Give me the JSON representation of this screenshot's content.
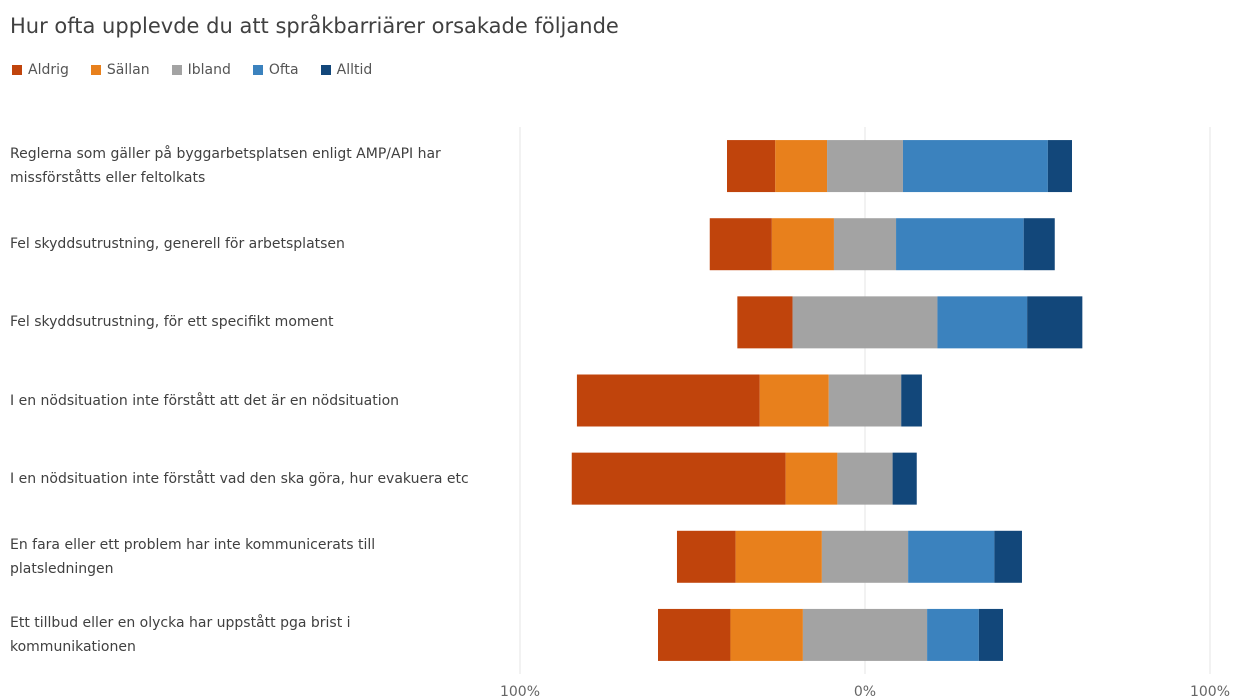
{
  "chart_data": {
    "type": "diverging-bar",
    "title": "Hur ofta upplevde du att språkbarriärer orsakade följande",
    "categories": [
      "Reglerna som gäller på byggarbetsplatsen enligt AMP/API har missförståtts eller feltolkats",
      "Fel skyddsutrustning, generell för arbetsplatsen",
      "Fel skyddsutrustning, för ett specifikt moment",
      "I en nödsituation inte förstått att det är en nödsituation",
      "I en nödsituation inte förstått vad den ska göra, hur evakuera etc",
      "En fara eller ett problem har inte kommunicerats till platsledningen",
      "Ett tillbud eller en olycka har uppstått pga brist i kommunikationen"
    ],
    "series": [
      {
        "name": "Aldrig",
        "color": "#c0440c",
        "values": [
          14,
          18,
          16,
          53,
          62,
          17,
          21
        ]
      },
      {
        "name": "Sällan",
        "color": "#e8801c",
        "values": [
          15,
          18,
          0,
          20,
          15,
          25,
          21
        ]
      },
      {
        "name": "Ibland",
        "color": "#a3a3a3",
        "values": [
          22,
          18,
          42,
          21,
          16,
          25,
          36
        ]
      },
      {
        "name": "Ofta",
        "color": "#3b82be",
        "values": [
          42,
          37,
          26,
          0,
          0,
          25,
          15
        ]
      },
      {
        "name": "Alltid",
        "color": "#12477a",
        "values": [
          7,
          9,
          16,
          6,
          7,
          8,
          7
        ]
      }
    ],
    "xlim": [
      -100,
      100
    ],
    "xticks": [
      {
        "value": -100,
        "label": "100%"
      },
      {
        "value": 0,
        "label": "0%"
      },
      {
        "value": 100,
        "label": "100%"
      }
    ],
    "grid": true
  }
}
